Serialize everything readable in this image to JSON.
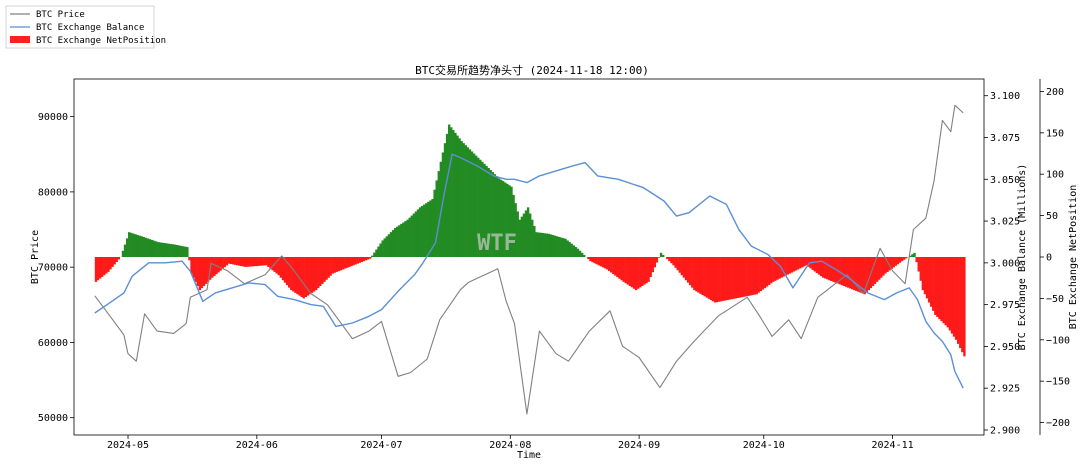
{
  "chart_data": {
    "type": "line",
    "title": "BTC交易所趋势净头寸 (2024-11-18 12:00)",
    "watermark": "WTF",
    "xlabel": "Time",
    "ylabel_left": "BTC Price",
    "ylabel_right1": "BTC Exchange Balance (Millions)",
    "ylabel_right2": "BTC Exchange NetPosition",
    "x_range": [
      "2024-04-23",
      "2024-11-18"
    ],
    "x_ticks": [
      "2024-05",
      "2024-06",
      "2024-07",
      "2024-08",
      "2024-09",
      "2024-10",
      "2024-11"
    ],
    "x_tick_dates": [
      "2024-05-01",
      "2024-06-01",
      "2024-07-01",
      "2024-08-01",
      "2024-09-01",
      "2024-10-01",
      "2024-11-01"
    ],
    "price_axis": {
      "ylim": [
        47700,
        95000
      ],
      "ticks": [
        50000,
        60000,
        70000,
        80000,
        90000
      ],
      "tick_labels": [
        "50000",
        "60000",
        "70000",
        "80000",
        "90000"
      ]
    },
    "balance_axis": {
      "ylim": [
        2.897,
        3.11
      ],
      "ticks": [
        2.9,
        2.925,
        2.95,
        2.975,
        3.0,
        3.025,
        3.05,
        3.075,
        3.1
      ],
      "tick_labels": [
        "2.900",
        "2.925",
        "2.950",
        "2.975",
        "3.000",
        "3.025",
        "3.050",
        "3.075",
        "3.100"
      ]
    },
    "netposition_axis": {
      "ylim": [
        -215,
        215
      ],
      "ticks": [
        -200,
        -150,
        -100,
        -50,
        0,
        50,
        100,
        150,
        200
      ],
      "tick_labels": [
        "−200",
        "−150",
        "−100",
        "−50",
        "0",
        "50",
        "100",
        "150",
        "200"
      ]
    },
    "legend": {
      "placement": "top-left, outside",
      "items": [
        {
          "label": "BTC Price",
          "color": "#808080",
          "kind": "line"
        },
        {
          "label": "BTC Exchange Balance",
          "color": "#5b8fd6",
          "kind": "line"
        },
        {
          "label": "BTC Exchange NetPosition",
          "color": "#ff2020",
          "kind": "patch"
        }
      ]
    },
    "colors": {
      "positive": "#228b22",
      "negative": "#ff1a1a",
      "price": "#808080",
      "balance": "#5b8fd6"
    },
    "series": [
      {
        "name": "BTC Price",
        "axis": "left",
        "points": [
          [
            "2024-04-23",
            66200
          ],
          [
            "2024-04-26",
            64000
          ],
          [
            "2024-04-30",
            61000
          ],
          [
            "2024-05-01",
            58500
          ],
          [
            "2024-05-03",
            57500
          ],
          [
            "2024-05-05",
            63800
          ],
          [
            "2024-05-08",
            61500
          ],
          [
            "2024-05-12",
            61200
          ],
          [
            "2024-05-15",
            62500
          ],
          [
            "2024-05-16",
            66000
          ],
          [
            "2024-05-20",
            67000
          ],
          [
            "2024-05-21",
            70500
          ],
          [
            "2024-05-25",
            69500
          ],
          [
            "2024-05-29",
            67800
          ],
          [
            "2024-06-03",
            69000
          ],
          [
            "2024-06-07",
            71500
          ],
          [
            "2024-06-10",
            69500
          ],
          [
            "2024-06-14",
            66500
          ],
          [
            "2024-06-18",
            65000
          ],
          [
            "2024-06-24",
            60500
          ],
          [
            "2024-06-28",
            61500
          ],
          [
            "2024-07-01",
            62800
          ],
          [
            "2024-07-05",
            55500
          ],
          [
            "2024-07-08",
            56000
          ],
          [
            "2024-07-12",
            57800
          ],
          [
            "2024-07-15",
            63000
          ],
          [
            "2024-07-20",
            67000
          ],
          [
            "2024-07-22",
            68000
          ],
          [
            "2024-07-29",
            69800
          ],
          [
            "2024-07-31",
            65500
          ],
          [
            "2024-08-02",
            62500
          ],
          [
            "2024-08-05",
            50500
          ],
          [
            "2024-08-08",
            61500
          ],
          [
            "2024-08-12",
            58500
          ],
          [
            "2024-08-15",
            57500
          ],
          [
            "2024-08-20",
            61500
          ],
          [
            "2024-08-25",
            64200
          ],
          [
            "2024-08-28",
            59500
          ],
          [
            "2024-09-01",
            58000
          ],
          [
            "2024-09-06",
            54000
          ],
          [
            "2024-09-10",
            57500
          ],
          [
            "2024-09-14",
            60000
          ],
          [
            "2024-09-20",
            63500
          ],
          [
            "2024-09-27",
            66000
          ],
          [
            "2024-09-30",
            63500
          ],
          [
            "2024-10-03",
            60800
          ],
          [
            "2024-10-07",
            63000
          ],
          [
            "2024-10-10",
            60500
          ],
          [
            "2024-10-14",
            66000
          ],
          [
            "2024-10-21",
            69000
          ],
          [
            "2024-10-25",
            66500
          ],
          [
            "2024-10-29",
            72500
          ],
          [
            "2024-11-01",
            69500
          ],
          [
            "2024-11-04",
            67800
          ],
          [
            "2024-11-06",
            75000
          ],
          [
            "2024-11-09",
            76500
          ],
          [
            "2024-11-11",
            81500
          ],
          [
            "2024-11-13",
            89500
          ],
          [
            "2024-11-15",
            88000
          ],
          [
            "2024-11-16",
            91500
          ],
          [
            "2024-11-18",
            90500
          ]
        ]
      },
      {
        "name": "BTC Exchange Balance",
        "axis": "right1",
        "points": [
          [
            "2024-04-23",
            2.97
          ],
          [
            "2024-04-26",
            2.975
          ],
          [
            "2024-04-30",
            2.982
          ],
          [
            "2024-05-02",
            2.992
          ],
          [
            "2024-05-06",
            3.0
          ],
          [
            "2024-05-10",
            3.0
          ],
          [
            "2024-05-14",
            3.001
          ],
          [
            "2024-05-16",
            2.995
          ],
          [
            "2024-05-19",
            2.977
          ],
          [
            "2024-05-22",
            2.982
          ],
          [
            "2024-05-26",
            2.985
          ],
          [
            "2024-05-30",
            2.988
          ],
          [
            "2024-06-03",
            2.987
          ],
          [
            "2024-06-06",
            2.98
          ],
          [
            "2024-06-10",
            2.978
          ],
          [
            "2024-06-14",
            2.975
          ],
          [
            "2024-06-17",
            2.974
          ],
          [
            "2024-06-20",
            2.962
          ],
          [
            "2024-06-24",
            2.964
          ],
          [
            "2024-06-28",
            2.968
          ],
          [
            "2024-07-01",
            2.972
          ],
          [
            "2024-07-05",
            2.983
          ],
          [
            "2024-07-09",
            2.993
          ],
          [
            "2024-07-11",
            3.0
          ],
          [
            "2024-07-14",
            3.012
          ],
          [
            "2024-07-16",
            3.04
          ],
          [
            "2024-07-18",
            3.065
          ],
          [
            "2024-07-20",
            3.063
          ],
          [
            "2024-07-24",
            3.058
          ],
          [
            "2024-07-28",
            3.052
          ],
          [
            "2024-07-31",
            3.05
          ],
          [
            "2024-08-02",
            3.05
          ],
          [
            "2024-08-05",
            3.048
          ],
          [
            "2024-08-08",
            3.052
          ],
          [
            "2024-08-12",
            3.055
          ],
          [
            "2024-08-16",
            3.058
          ],
          [
            "2024-08-19",
            3.06
          ],
          [
            "2024-08-22",
            3.052
          ],
          [
            "2024-08-27",
            3.05
          ],
          [
            "2024-09-02",
            3.045
          ],
          [
            "2024-09-07",
            3.037
          ],
          [
            "2024-09-10",
            3.028
          ],
          [
            "2024-09-13",
            3.03
          ],
          [
            "2024-09-18",
            3.04
          ],
          [
            "2024-09-22",
            3.035
          ],
          [
            "2024-09-25",
            3.02
          ],
          [
            "2024-09-28",
            3.01
          ],
          [
            "2024-10-02",
            3.005
          ],
          [
            "2024-10-05",
            2.998
          ],
          [
            "2024-10-08",
            2.985
          ],
          [
            "2024-10-12",
            3.0
          ],
          [
            "2024-10-15",
            3.001
          ],
          [
            "2024-10-19",
            2.995
          ],
          [
            "2024-10-22",
            2.99
          ],
          [
            "2024-10-26",
            2.982
          ],
          [
            "2024-10-30",
            2.978
          ],
          [
            "2024-11-02",
            2.982
          ],
          [
            "2024-11-05",
            2.985
          ],
          [
            "2024-11-07",
            2.978
          ],
          [
            "2024-11-09",
            2.965
          ],
          [
            "2024-11-11",
            2.958
          ],
          [
            "2024-11-13",
            2.953
          ],
          [
            "2024-11-15",
            2.945
          ],
          [
            "2024-11-16",
            2.935
          ],
          [
            "2024-11-18",
            2.925
          ]
        ]
      },
      {
        "name": "BTC Exchange NetPosition",
        "axis": "right2",
        "kind": "bar",
        "points": [
          [
            "2024-04-23",
            -30
          ],
          [
            "2024-04-26",
            -18
          ],
          [
            "2024-04-29",
            0
          ],
          [
            "2024-05-01",
            30
          ],
          [
            "2024-05-04",
            25
          ],
          [
            "2024-05-08",
            18
          ],
          [
            "2024-05-12",
            15
          ],
          [
            "2024-05-15",
            12
          ],
          [
            "2024-05-16",
            -20
          ],
          [
            "2024-05-18",
            -40
          ],
          [
            "2024-05-21",
            -25
          ],
          [
            "2024-05-25",
            -8
          ],
          [
            "2024-05-29",
            -12
          ],
          [
            "2024-06-03",
            -10
          ],
          [
            "2024-06-06",
            -22
          ],
          [
            "2024-06-09",
            -40
          ],
          [
            "2024-06-12",
            -50
          ],
          [
            "2024-06-15",
            -40
          ],
          [
            "2024-06-19",
            -20
          ],
          [
            "2024-06-24",
            -10
          ],
          [
            "2024-06-28",
            -2
          ],
          [
            "2024-07-01",
            20
          ],
          [
            "2024-07-04",
            35
          ],
          [
            "2024-07-07",
            45
          ],
          [
            "2024-07-10",
            60
          ],
          [
            "2024-07-13",
            70
          ],
          [
            "2024-07-17",
            160
          ],
          [
            "2024-07-20",
            140
          ],
          [
            "2024-07-23",
            125
          ],
          [
            "2024-07-26",
            110
          ],
          [
            "2024-07-29",
            95
          ],
          [
            "2024-08-01",
            85
          ],
          [
            "2024-08-03",
            45
          ],
          [
            "2024-08-05",
            60
          ],
          [
            "2024-08-07",
            30
          ],
          [
            "2024-08-10",
            28
          ],
          [
            "2024-08-14",
            22
          ],
          [
            "2024-08-17",
            10
          ],
          [
            "2024-08-20",
            -5
          ],
          [
            "2024-08-24",
            -15
          ],
          [
            "2024-08-28",
            -30
          ],
          [
            "2024-08-31",
            -40
          ],
          [
            "2024-09-03",
            -30
          ],
          [
            "2024-09-06",
            5
          ],
          [
            "2024-09-09",
            -10
          ],
          [
            "2024-09-14",
            -40
          ],
          [
            "2024-09-19",
            -55
          ],
          [
            "2024-09-24",
            -50
          ],
          [
            "2024-09-29",
            -45
          ],
          [
            "2024-10-03",
            -30
          ],
          [
            "2024-10-07",
            -20
          ],
          [
            "2024-10-11",
            -10
          ],
          [
            "2024-10-15",
            -25
          ],
          [
            "2024-10-20",
            -35
          ],
          [
            "2024-10-25",
            -45
          ],
          [
            "2024-10-30",
            -20
          ],
          [
            "2024-11-03",
            -5
          ],
          [
            "2024-11-06",
            5
          ],
          [
            "2024-11-08",
            -40
          ],
          [
            "2024-11-11",
            -70
          ],
          [
            "2024-11-14",
            -85
          ],
          [
            "2024-11-16",
            -100
          ],
          [
            "2024-11-18",
            -120
          ]
        ]
      }
    ]
  }
}
